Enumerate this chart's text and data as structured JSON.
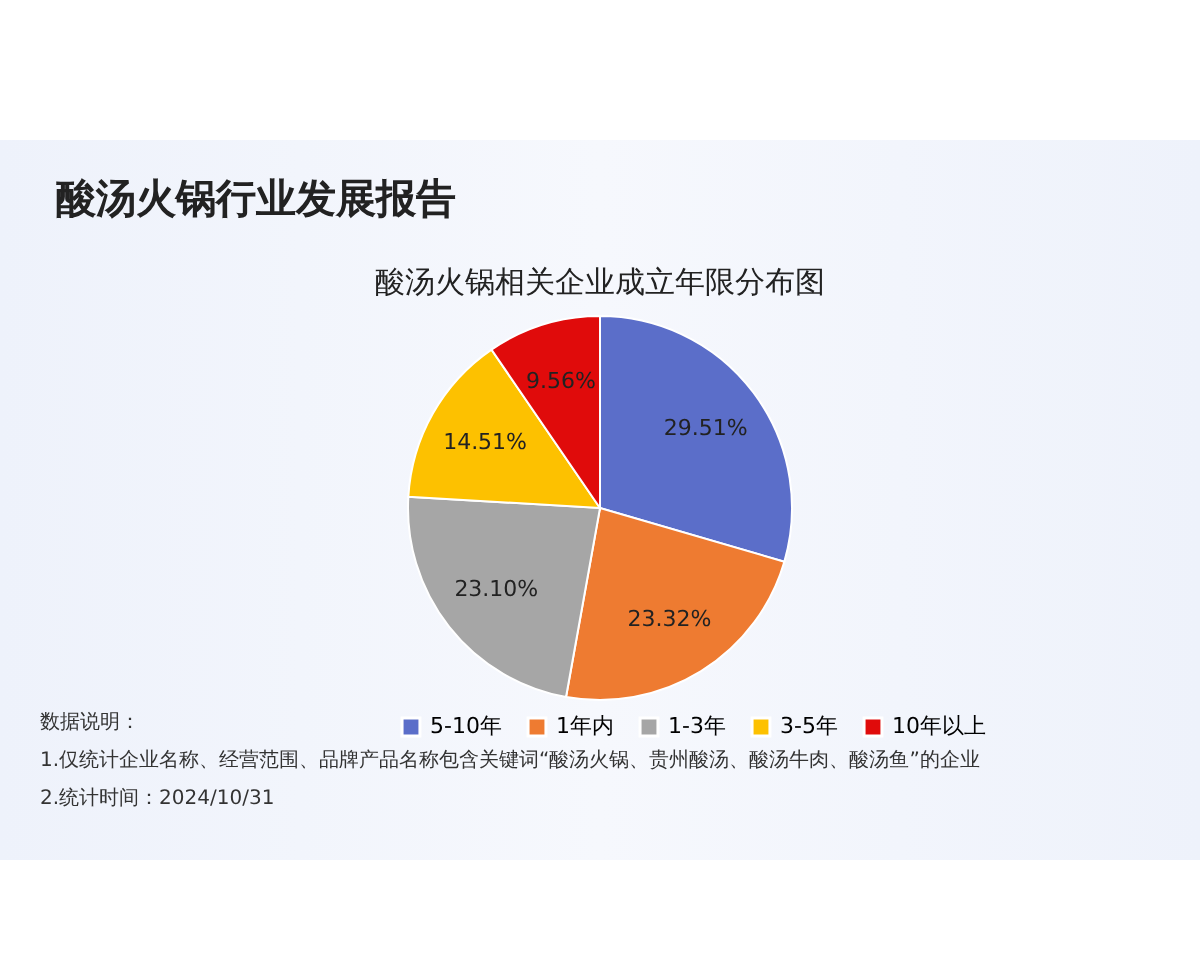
{
  "chart_data": {
    "type": "pie",
    "title": "酸汤火锅行业发展报告",
    "subtitle": "酸汤火锅相关企业成立年限分布图",
    "categories": [
      "5-10年",
      "1年内",
      "1-3年",
      "3-5年",
      "10年以上"
    ],
    "values": [
      29.51,
      23.32,
      23.1,
      14.51,
      9.56
    ],
    "value_labels": [
      "29.51%",
      "23.32%",
      "23.10%",
      "14.51%",
      "9.56%"
    ],
    "colors": [
      "#5b6ec9",
      "#ee7b31",
      "#a6a6a6",
      "#fdc100",
      "#e00b0b"
    ],
    "legend": "bottom",
    "annotations": [
      "数据说明：",
      "1.仅统计企业名称、经营范围、品牌产品名称包含关键词“酸汤火锅、贵州酸汤、酸汤牛肉、酸汤鱼”的企业",
      "2.统计时间：2024/10/31"
    ]
  }
}
